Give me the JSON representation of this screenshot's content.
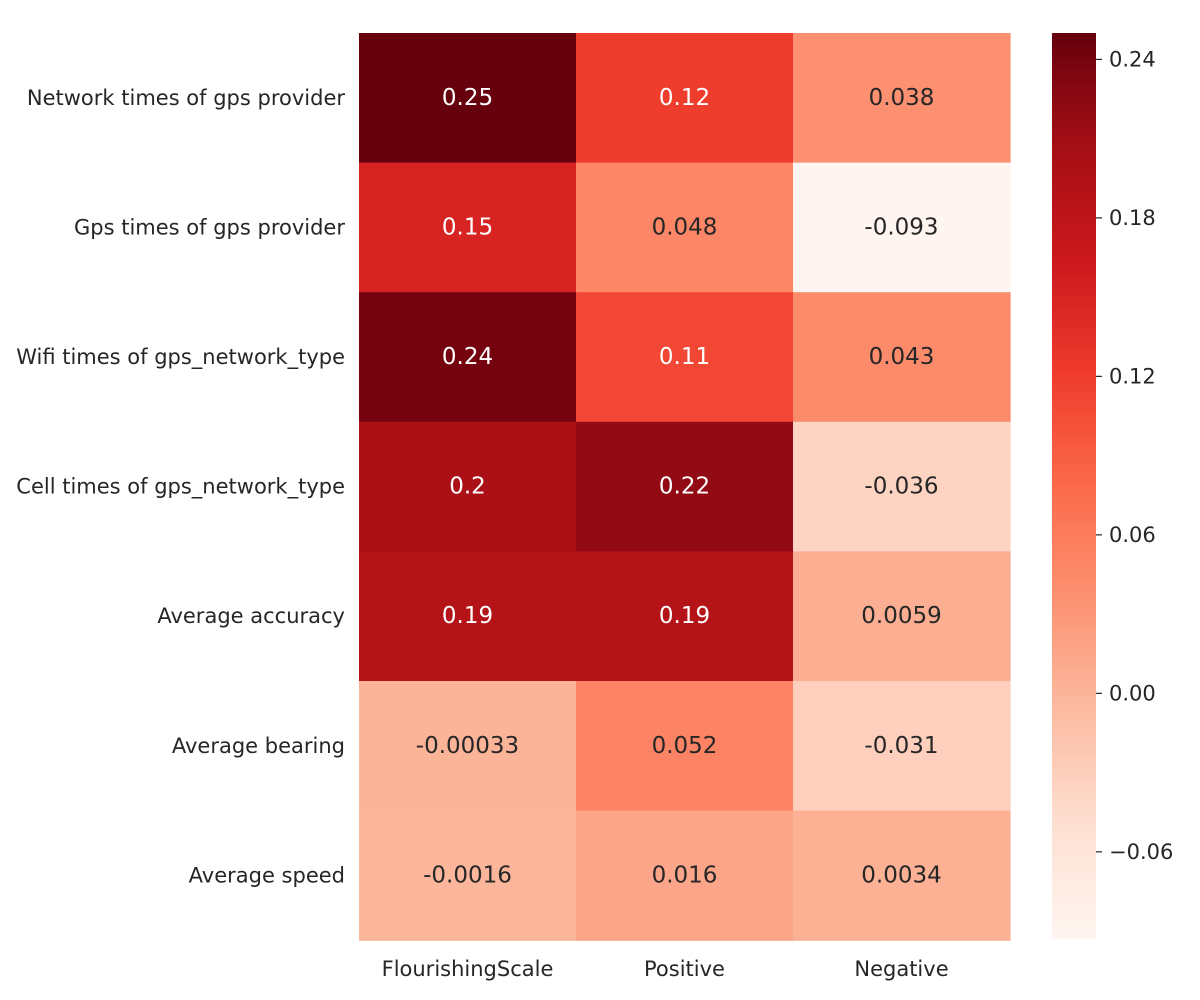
{
  "chart_data": {
    "type": "heatmap",
    "title": "",
    "xlabel": "",
    "ylabel": "",
    "columns": [
      "FlourishingScale",
      "Positive",
      "Negative"
    ],
    "rows": [
      "Network times of gps provider",
      "Gps times of gps provider",
      "Wifi times of gps_network_type",
      "Cell times of gps_network_type",
      "Average accuracy",
      "Average bearing",
      "Average speed"
    ],
    "values": [
      [
        0.25,
        0.12,
        0.038
      ],
      [
        0.15,
        0.048,
        -0.093
      ],
      [
        0.24,
        0.11,
        0.043
      ],
      [
        0.2,
        0.22,
        -0.036
      ],
      [
        0.19,
        0.19,
        0.0059
      ],
      [
        -0.00033,
        0.052,
        -0.031
      ],
      [
        -0.0016,
        0.016,
        0.0034
      ]
    ],
    "annotations": [
      [
        "0.25",
        "0.12",
        "0.038"
      ],
      [
        "0.15",
        "0.048",
        "-0.093"
      ],
      [
        "0.24",
        "0.11",
        "0.043"
      ],
      [
        "0.2",
        "0.22",
        "-0.036"
      ],
      [
        "0.19",
        "0.19",
        "0.0059"
      ],
      [
        "-0.00033",
        "0.052",
        "-0.031"
      ],
      [
        "-0.0016",
        "0.016",
        "0.0034"
      ]
    ],
    "colormap": "Reds",
    "color_stops": [
      "#fff5f0",
      "#fee0d2",
      "#fcbba1",
      "#fc9272",
      "#fb6a4a",
      "#ef3b2c",
      "#cb181d",
      "#a50f15",
      "#67000d"
    ],
    "vmin": -0.093,
    "vmax": 0.25,
    "colorbar": {
      "ticks": [
        0.24,
        0.18,
        0.12,
        0.06,
        0.0,
        -0.06
      ],
      "tick_labels": [
        "0.24",
        "0.18",
        "0.12",
        "0.06",
        "0.00",
        "−0.06"
      ],
      "placement": "right"
    }
  }
}
